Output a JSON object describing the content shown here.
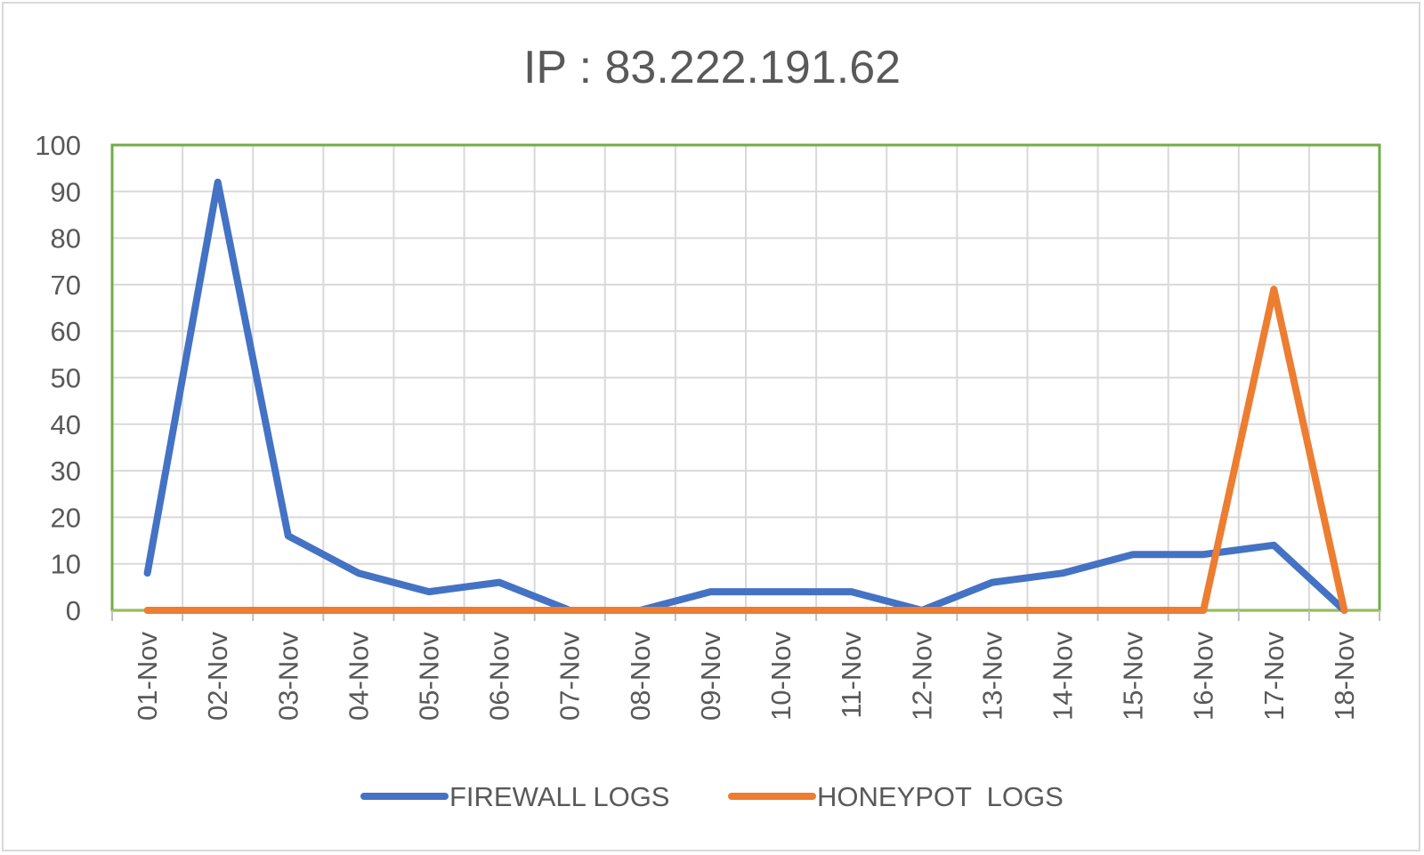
{
  "chart_data": {
    "type": "line",
    "title": "IP : 83.222.191.62",
    "xlabel": "",
    "ylabel": "",
    "ylim": [
      0,
      100
    ],
    "yticks": [
      0,
      10,
      20,
      30,
      40,
      50,
      60,
      70,
      80,
      90,
      100
    ],
    "categories": [
      "01-Nov",
      "02-Nov",
      "03-Nov",
      "04-Nov",
      "05-Nov",
      "06-Nov",
      "07-Nov",
      "08-Nov",
      "09-Nov",
      "10-Nov",
      "11-Nov",
      "12-Nov",
      "13-Nov",
      "14-Nov",
      "15-Nov",
      "16-Nov",
      "17-Nov",
      "18-Nov"
    ],
    "grid": true,
    "legend_position": "bottom",
    "series": [
      {
        "name": "FIREWALL LOGS",
        "color": "#4472c4",
        "values": [
          8,
          92,
          16,
          8,
          4,
          6,
          0,
          0,
          4,
          4,
          4,
          0,
          6,
          8,
          12,
          12,
          14,
          0
        ]
      },
      {
        "name": "HONEYPOT  LOGS",
        "color": "#ed7d31",
        "values": [
          0,
          0,
          0,
          0,
          0,
          0,
          0,
          0,
          0,
          0,
          0,
          0,
          0,
          0,
          0,
          0,
          69,
          0
        ]
      }
    ]
  }
}
